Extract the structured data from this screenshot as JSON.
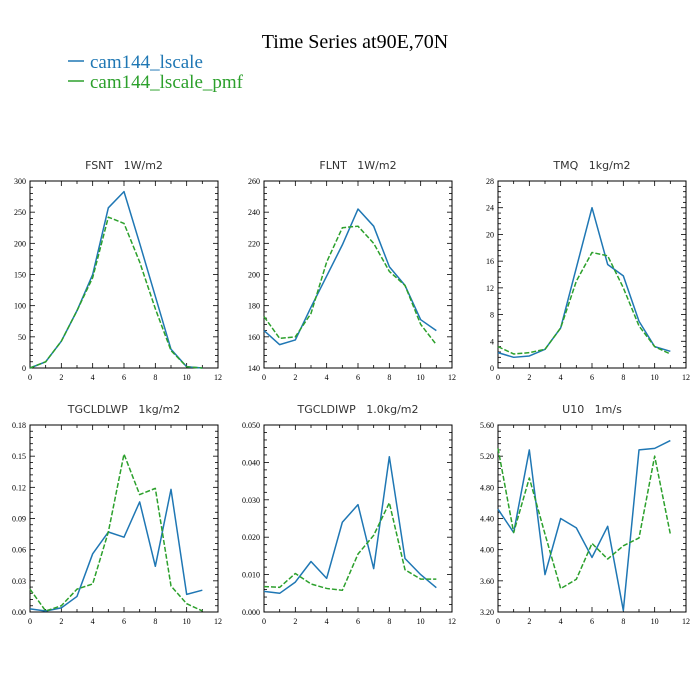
{
  "figure": {
    "title": "Time Series at90E,70N",
    "legend": [
      {
        "label": "cam144_lscale",
        "color": "#1f77b4",
        "dash": "solid"
      },
      {
        "label": "cam144_lscale_pmf",
        "color": "#2ca02c",
        "dash": "dashed"
      }
    ]
  },
  "chart_data": [
    {
      "type": "line",
      "title": "FSNT   1W/m2",
      "x": [
        0,
        1,
        2,
        3,
        4,
        5,
        6,
        7,
        8,
        9,
        10,
        11
      ],
      "xlim": [
        0,
        12
      ],
      "xticks": [
        "0",
        "2",
        "4",
        "6",
        "8",
        "10",
        "12"
      ],
      "ylim": [
        0,
        300
      ],
      "yticks": [
        "0",
        "50",
        "100",
        "150",
        "200",
        "250",
        "300"
      ],
      "series": [
        {
          "name": "cam144_lscale",
          "values": [
            0,
            10,
            43,
            92,
            150,
            257,
            283,
            200,
            115,
            30,
            2,
            0
          ]
        },
        {
          "name": "cam144_lscale_pmf",
          "values": [
            0,
            10,
            43,
            92,
            145,
            242,
            232,
            170,
            95,
            28,
            2,
            0
          ]
        }
      ]
    },
    {
      "type": "line",
      "title": "FLNT   1W/m2",
      "x": [
        0,
        1,
        2,
        3,
        4,
        5,
        6,
        7,
        8,
        9,
        10,
        11
      ],
      "xlim": [
        0,
        12
      ],
      "xticks": [
        "0",
        "2",
        "4",
        "6",
        "8",
        "10",
        "12"
      ],
      "ylim": [
        140,
        260
      ],
      "yticks": [
        "140",
        "160",
        "180",
        "200",
        "220",
        "240",
        "260"
      ],
      "series": [
        {
          "name": "cam144_lscale",
          "values": [
            164,
            155,
            158,
            179,
            199,
            219,
            242,
            231,
            205,
            193,
            171,
            164
          ]
        },
        {
          "name": "cam144_lscale_pmf",
          "values": [
            173,
            159,
            160,
            175,
            208,
            230,
            231,
            220,
            202,
            193,
            168,
            155
          ]
        }
      ]
    },
    {
      "type": "line",
      "title": "TMQ   1kg/m2",
      "x": [
        0,
        1,
        2,
        3,
        4,
        5,
        6,
        7,
        8,
        9,
        10,
        11
      ],
      "xlim": [
        0,
        12
      ],
      "xticks": [
        "0",
        "2",
        "4",
        "6",
        "8",
        "10",
        "12"
      ],
      "ylim": [
        0,
        28
      ],
      "yticks": [
        "0",
        "4",
        "8",
        "12",
        "16",
        "20",
        "24",
        "28"
      ],
      "series": [
        {
          "name": "cam144_lscale",
          "values": [
            2.3,
            1.6,
            1.8,
            2.8,
            6,
            15,
            24,
            15.5,
            13.8,
            7,
            3.2,
            2.5
          ]
        },
        {
          "name": "cam144_lscale_pmf",
          "values": [
            3.2,
            2.1,
            2.3,
            2.8,
            6,
            13,
            17.3,
            16.8,
            12,
            6.3,
            3.2,
            2.1
          ]
        }
      ]
    },
    {
      "type": "line",
      "title": "TGCLDLWP   1kg/m2",
      "x": [
        0,
        1,
        2,
        3,
        4,
        5,
        6,
        7,
        8,
        9,
        10,
        11
      ],
      "xlim": [
        0,
        12
      ],
      "xticks": [
        "0",
        "2",
        "4",
        "6",
        "8",
        "10",
        "12"
      ],
      "ylim": [
        0,
        0.18
      ],
      "yticks": [
        "0.00",
        "0.03",
        "0.06",
        "0.09",
        "0.12",
        "0.15",
        "0.18"
      ],
      "series": [
        {
          "name": "cam144_lscale",
          "values": [
            0.003,
            0.001,
            0.004,
            0.015,
            0.056,
            0.077,
            0.072,
            0.106,
            0.044,
            0.118,
            0.017,
            0.021
          ]
        },
        {
          "name": "cam144_lscale_pmf",
          "values": [
            0.022,
            0.001,
            0.006,
            0.022,
            0.027,
            0.077,
            0.152,
            0.113,
            0.119,
            0.025,
            0.008,
            0.001
          ]
        }
      ]
    },
    {
      "type": "line",
      "title": "TGCLDIWP   1.0kg/m2",
      "x": [
        0,
        1,
        2,
        3,
        4,
        5,
        6,
        7,
        8,
        9,
        10,
        11
      ],
      "xlim": [
        0,
        12
      ],
      "xticks": [
        "0",
        "2",
        "4",
        "6",
        "8",
        "10",
        "12"
      ],
      "ylim": [
        0,
        0.05
      ],
      "yticks": [
        "0.000",
        "0.010",
        "0.020",
        "0.030",
        "0.040",
        "0.050"
      ],
      "series": [
        {
          "name": "cam144_lscale",
          "values": [
            0.0055,
            0.005,
            0.008,
            0.0135,
            0.009,
            0.024,
            0.0287,
            0.0116,
            0.0415,
            0.0143,
            0.01,
            0.0065
          ]
        },
        {
          "name": "cam144_lscale_pmf",
          "values": [
            0.0068,
            0.0066,
            0.0103,
            0.0075,
            0.0063,
            0.0058,
            0.0155,
            0.0205,
            0.0292,
            0.0113,
            0.0088,
            0.0088
          ]
        }
      ]
    },
    {
      "type": "line",
      "title": "U10   1m/s",
      "x": [
        0,
        1,
        2,
        3,
        4,
        5,
        6,
        7,
        8,
        9,
        10,
        11
      ],
      "xlim": [
        0,
        12
      ],
      "xticks": [
        "0",
        "2",
        "4",
        "6",
        "8",
        "10",
        "12"
      ],
      "ylim": [
        3.2,
        5.6
      ],
      "yticks": [
        "3.20",
        "3.60",
        "4.00",
        "4.40",
        "4.80",
        "5.20",
        "5.60"
      ],
      "series": [
        {
          "name": "cam144_lscale",
          "values": [
            4.52,
            4.22,
            5.28,
            3.68,
            4.4,
            4.28,
            3.9,
            4.3,
            3.22,
            5.28,
            5.3,
            5.4
          ]
        },
        {
          "name": "cam144_lscale_pmf",
          "values": [
            5.3,
            4.22,
            4.92,
            4.2,
            3.5,
            3.62,
            4.08,
            3.88,
            4.05,
            4.15,
            5.2,
            4.2
          ]
        }
      ]
    }
  ]
}
